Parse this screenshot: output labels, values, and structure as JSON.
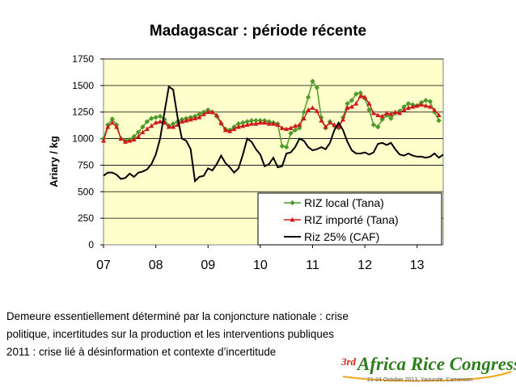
{
  "slide": {
    "caption_lines": [
      "Demeure essentiellement déterminé par la conjoncture nationale : crise",
      "politique, incertitudes sur la production et les interventions publiques",
      "2011 : crise lié à désinformation et contexte d’incertitude"
    ],
    "logo": {
      "ordinal": "3rd",
      "text": "Africa Rice Congress",
      "subtitle": "21-24 October 2013, Yaoundé, Cameroon",
      "colors": {
        "ordinal": "#d62718",
        "text": "#2e7d1e",
        "accent": "#f2a71b"
      }
    }
  },
  "chart_data": {
    "type": "line",
    "title": "Madagascar : période récente",
    "ylabel": "Ariary / kg",
    "xlabel": "",
    "ylim": [
      0,
      1750
    ],
    "yticks": [
      0,
      250,
      500,
      750,
      1000,
      1250,
      1500,
      1750
    ],
    "xticks": [
      "07",
      "08",
      "09",
      "10",
      "11",
      "12",
      "13"
    ],
    "xlim": [
      2007.0,
      2013.5
    ],
    "plot_background": "#ffffcc",
    "grid": true,
    "legend_position": "bottom-right",
    "series": [
      {
        "name": "RIZ local (Tana)",
        "color": "#4e9a2c",
        "marker": "diamond",
        "x": [
          2007.0,
          2007.083,
          2007.167,
          2007.25,
          2007.333,
          2007.417,
          2007.5,
          2007.583,
          2007.667,
          2007.75,
          2007.833,
          2007.917,
          2008.0,
          2008.083,
          2008.167,
          2008.25,
          2008.333,
          2008.417,
          2008.5,
          2008.583,
          2008.667,
          2008.75,
          2008.833,
          2008.917,
          2009.0,
          2009.083,
          2009.167,
          2009.25,
          2009.333,
          2009.417,
          2009.5,
          2009.583,
          2009.667,
          2009.75,
          2009.833,
          2009.917,
          2010.0,
          2010.083,
          2010.167,
          2010.25,
          2010.333,
          2010.417,
          2010.5,
          2010.583,
          2010.667,
          2010.75,
          2010.833,
          2010.917,
          2011.0,
          2011.083,
          2011.167,
          2011.25,
          2011.333,
          2011.417,
          2011.5,
          2011.583,
          2011.667,
          2011.75,
          2011.833,
          2011.917,
          2012.0,
          2012.083,
          2012.167,
          2012.25,
          2012.333,
          2012.417,
          2012.5,
          2012.583,
          2012.667,
          2012.75,
          2012.833,
          2012.917,
          2013.0,
          2013.083,
          2013.167,
          2013.25,
          2013.333,
          2013.417
        ],
        "values": [
          1000,
          1130,
          1185,
          1130,
          1000,
          980,
          990,
          1020,
          1060,
          1110,
          1160,
          1190,
          1200,
          1210,
          1180,
          1120,
          1140,
          1160,
          1180,
          1190,
          1200,
          1210,
          1230,
          1250,
          1270,
          1250,
          1210,
          1140,
          1090,
          1080,
          1110,
          1140,
          1150,
          1160,
          1170,
          1170,
          1170,
          1170,
          1160,
          1150,
          1140,
          930,
          920,
          1050,
          1080,
          1100,
          1250,
          1390,
          1540,
          1480,
          1200,
          1100,
          1160,
          1120,
          1100,
          1200,
          1330,
          1360,
          1420,
          1430,
          1380,
          1270,
          1130,
          1110,
          1180,
          1220,
          1190,
          1240,
          1260,
          1300,
          1330,
          1320,
          1310,
          1340,
          1360,
          1350,
          1250,
          1170
        ]
      },
      {
        "name": "RIZ importé (Tana)",
        "color": "#cc1a1a",
        "marker": "triangle",
        "x": [
          2007.0,
          2007.083,
          2007.167,
          2007.25,
          2007.333,
          2007.417,
          2007.5,
          2007.583,
          2007.667,
          2007.75,
          2007.833,
          2007.917,
          2008.0,
          2008.083,
          2008.167,
          2008.25,
          2008.333,
          2008.417,
          2008.5,
          2008.583,
          2008.667,
          2008.75,
          2008.833,
          2008.917,
          2009.0,
          2009.083,
          2009.167,
          2009.25,
          2009.333,
          2009.417,
          2009.5,
          2009.583,
          2009.667,
          2009.75,
          2009.833,
          2009.917,
          2010.0,
          2010.083,
          2010.167,
          2010.25,
          2010.333,
          2010.417,
          2010.5,
          2010.583,
          2010.667,
          2010.75,
          2010.833,
          2010.917,
          2011.0,
          2011.083,
          2011.167,
          2011.25,
          2011.333,
          2011.417,
          2011.5,
          2011.583,
          2011.667,
          2011.75,
          2011.833,
          2011.917,
          2012.0,
          2012.083,
          2012.167,
          2012.25,
          2012.333,
          2012.417,
          2012.5,
          2012.583,
          2012.667,
          2012.75,
          2012.833,
          2012.917,
          2013.0,
          2013.083,
          2013.167,
          2013.25,
          2013.333,
          2013.417
        ],
        "values": [
          980,
          1110,
          1150,
          1110,
          1000,
          970,
          980,
          990,
          1020,
          1060,
          1090,
          1120,
          1150,
          1160,
          1150,
          1110,
          1110,
          1130,
          1160,
          1170,
          1180,
          1190,
          1200,
          1230,
          1250,
          1250,
          1220,
          1150,
          1080,
          1070,
          1090,
          1110,
          1120,
          1130,
          1140,
          1140,
          1150,
          1150,
          1140,
          1140,
          1130,
          1100,
          1090,
          1100,
          1120,
          1130,
          1190,
          1270,
          1290,
          1260,
          1170,
          1110,
          1150,
          1130,
          1110,
          1180,
          1290,
          1300,
          1330,
          1400,
          1390,
          1330,
          1240,
          1220,
          1210,
          1240,
          1230,
          1250,
          1240,
          1270,
          1290,
          1300,
          1310,
          1320,
          1310,
          1300,
          1270,
          1220
        ]
      },
      {
        "name": "Riz 25% (CAF)",
        "color": "#000000",
        "marker": "none",
        "x": [
          2007.0,
          2007.083,
          2007.167,
          2007.25,
          2007.333,
          2007.417,
          2007.5,
          2007.583,
          2007.667,
          2007.75,
          2007.833,
          2007.917,
          2008.0,
          2008.083,
          2008.167,
          2008.25,
          2008.333,
          2008.417,
          2008.5,
          2008.583,
          2008.667,
          2008.75,
          2008.833,
          2008.917,
          2009.0,
          2009.083,
          2009.167,
          2009.25,
          2009.333,
          2009.417,
          2009.5,
          2009.583,
          2009.667,
          2009.75,
          2009.833,
          2009.917,
          2010.0,
          2010.083,
          2010.167,
          2010.25,
          2010.333,
          2010.417,
          2010.5,
          2010.583,
          2010.667,
          2010.75,
          2010.833,
          2010.917,
          2011.0,
          2011.083,
          2011.167,
          2011.25,
          2011.333,
          2011.417,
          2011.5,
          2011.583,
          2011.667,
          2011.75,
          2011.833,
          2011.917,
          2012.0,
          2012.083,
          2012.167,
          2012.25,
          2012.333,
          2012.417,
          2012.5,
          2012.583,
          2012.667,
          2012.75,
          2012.833,
          2012.917,
          2013.0,
          2013.083,
          2013.167,
          2013.25,
          2013.333,
          2013.417,
          2013.5
        ],
        "values": [
          650,
          680,
          680,
          660,
          620,
          630,
          670,
          640,
          680,
          690,
          710,
          760,
          850,
          1000,
          1250,
          1490,
          1460,
          1200,
          1000,
          980,
          900,
          600,
          640,
          650,
          720,
          700,
          760,
          840,
          770,
          730,
          680,
          720,
          850,
          1000,
          970,
          900,
          850,
          740,
          760,
          820,
          730,
          740,
          860,
          870,
          920,
          1000,
          980,
          920,
          890,
          900,
          920,
          900,
          960,
          1080,
          1150,
          1080,
          970,
          890,
          860,
          860,
          870,
          850,
          870,
          950,
          960,
          940,
          960,
          900,
          850,
          840,
          860,
          840,
          830,
          830,
          820,
          830,
          860,
          820,
          850
        ]
      }
    ]
  }
}
